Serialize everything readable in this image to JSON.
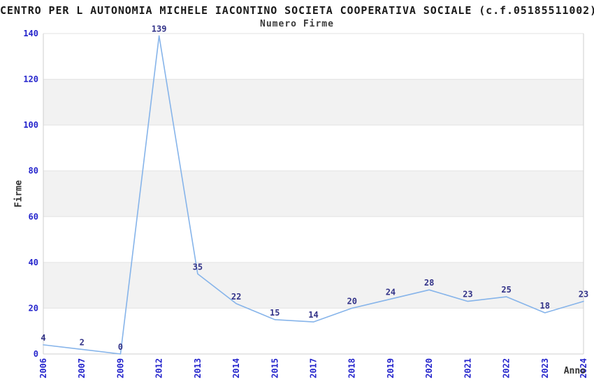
{
  "header": {
    "title": "CENTRO PER L AUTONOMIA MICHELE IACONTINO SOCIETA COOPERATIVA SOCIALE (c.f.05185511002)",
    "subtitle": "Numero Firme"
  },
  "chart_data": {
    "type": "line",
    "title": "CENTRO PER L AUTONOMIA MICHELE IACONTINO SOCIETA COOPERATIVA SOCIALE (c.f.05185511002)",
    "subtitle": "Numero Firme",
    "categories": [
      "2006",
      "2007",
      "2009",
      "2012",
      "2013",
      "2014",
      "2015",
      "2017",
      "2018",
      "2019",
      "2020",
      "2021",
      "2022",
      "2023",
      "2024"
    ],
    "values": [
      4,
      2,
      0,
      139,
      35,
      22,
      15,
      14,
      20,
      24,
      28,
      23,
      25,
      18,
      23
    ],
    "xlabel": "Anno",
    "ylabel": "Firme",
    "ylim": [
      0,
      140
    ],
    "ytick_interval": 20,
    "yticks": [
      0,
      20,
      40,
      60,
      80,
      100,
      120,
      140
    ],
    "grid": true,
    "legend": "none",
    "band_pattern": "alternating gray bands on 20-40, 60-80, 100-120",
    "colors": {
      "line": "#86b4ea",
      "tick_label": "#2424cc",
      "data_label": "#333388",
      "band": "#f2f2f2",
      "gridline": "#e3e3e3",
      "axis_line": "#cfcfcf",
      "title": "#1a1a1a",
      "axis_title": "#333333",
      "background": "#ffffff"
    }
  }
}
